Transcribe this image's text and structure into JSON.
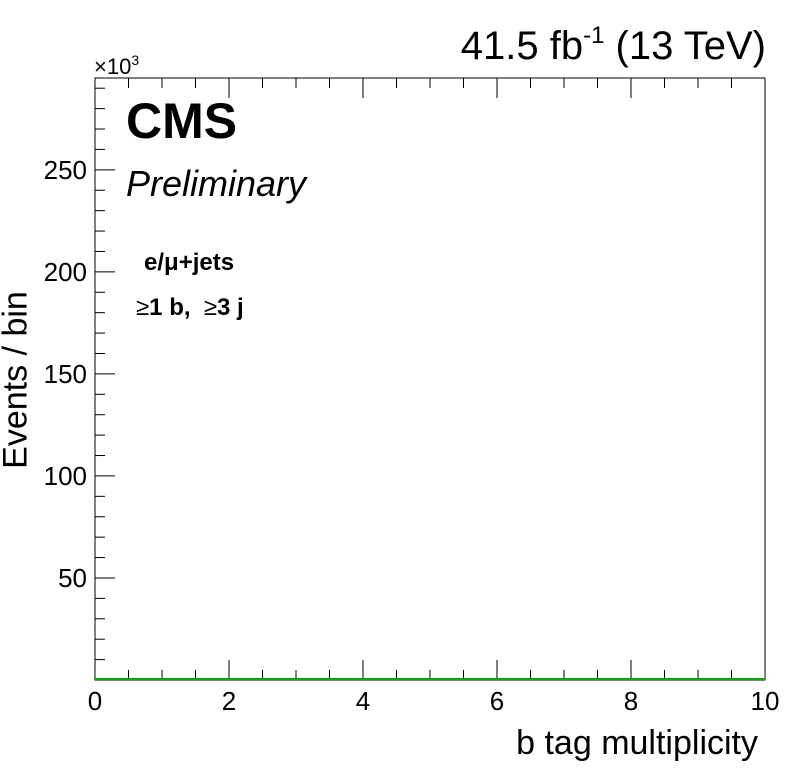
{
  "header": {
    "lumi": "41.5 fb",
    "lumi_exp": "-1",
    "energy": "(13 TeV)",
    "multiplier_base": "×10",
    "multiplier_exp": "3"
  },
  "labels": {
    "experiment": "CMS",
    "status": "Preliminary",
    "channel": "e/μ+jets",
    "sel_sym1": "≥",
    "sel_part1": "1 b,",
    "sel_sym2": "≥",
    "sel_part2": "3 j"
  },
  "chart_data": {
    "type": "line",
    "xlabel": "b tag multiplicity",
    "ylabel": "Events / bin",
    "xlim": [
      0,
      10
    ],
    "ylim": [
      0,
      295
    ],
    "x_ticks": [
      0,
      2,
      4,
      6,
      8,
      10
    ],
    "x_tick_labels": [
      "0",
      "2",
      "4",
      "6",
      "8",
      "10"
    ],
    "y_ticks": [
      50,
      100,
      150,
      200,
      250
    ],
    "y_tick_labels": [
      "50",
      "100",
      "150",
      "200",
      "250"
    ],
    "series": [
      {
        "x": [
          0,
          10
        ],
        "values": [
          0,
          0
        ],
        "color": "#00aa00"
      }
    ],
    "grid": false
  }
}
